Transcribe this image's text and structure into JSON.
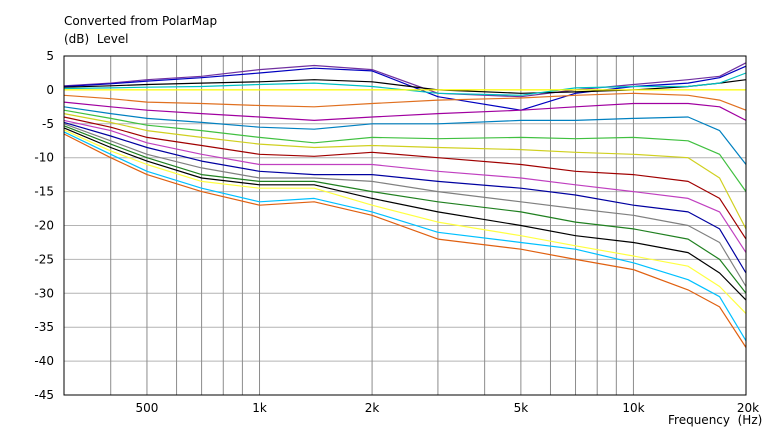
{
  "chart_data": {
    "type": "line",
    "title": "Converted from PolarMap",
    "ylabel": "(dB)  Level",
    "xlabel": "Frequency  (Hz)",
    "x_scale": "log",
    "xlim": [
      300,
      20000
    ],
    "ylim": [
      -45,
      5
    ],
    "grid": true,
    "x_ticks": [
      {
        "value": 400,
        "label": ""
      },
      {
        "value": 500,
        "label": "500"
      },
      {
        "value": 600,
        "label": ""
      },
      {
        "value": 700,
        "label": ""
      },
      {
        "value": 800,
        "label": ""
      },
      {
        "value": 900,
        "label": ""
      },
      {
        "value": 1000,
        "label": "1k"
      },
      {
        "value": 2000,
        "label": "2k"
      },
      {
        "value": 3000,
        "label": ""
      },
      {
        "value": 4000,
        "label": ""
      },
      {
        "value": 5000,
        "label": "5k"
      },
      {
        "value": 6000,
        "label": ""
      },
      {
        "value": 7000,
        "label": ""
      },
      {
        "value": 8000,
        "label": ""
      },
      {
        "value": 9000,
        "label": ""
      },
      {
        "value": 10000,
        "label": "10k"
      },
      {
        "value": 20000,
        "label": "20k"
      }
    ],
    "y_ticks": [
      5,
      0,
      -5,
      -10,
      -15,
      -20,
      -25,
      -30,
      -35,
      -40,
      -45
    ],
    "x": [
      300,
      400,
      500,
      700,
      1000,
      1400,
      2000,
      3000,
      5000,
      7000,
      10000,
      14000,
      17000,
      20000
    ],
    "series": [
      {
        "color": "#7030a0",
        "values": [
          0.6,
          1.0,
          1.5,
          2.0,
          3.0,
          3.6,
          3.0,
          -0.5,
          -1.0,
          0.0,
          0.8,
          1.5,
          2.0,
          4.0
        ]
      },
      {
        "color": "#0000c0",
        "values": [
          0.5,
          0.9,
          1.3,
          1.8,
          2.5,
          3.2,
          2.8,
          -1.0,
          -3.0,
          -0.5,
          0.5,
          1.0,
          1.8,
          3.5
        ]
      },
      {
        "color": "#000000",
        "values": [
          0.4,
          0.6,
          0.8,
          1.0,
          1.2,
          1.5,
          1.2,
          0.0,
          -0.5,
          -0.3,
          0.0,
          0.5,
          1.0,
          1.5
        ]
      },
      {
        "color": "#00c0c0",
        "values": [
          0.2,
          0.3,
          0.4,
          0.5,
          0.8,
          1.0,
          0.5,
          -0.5,
          -0.8,
          0.3,
          0.5,
          0.5,
          1.0,
          2.5
        ]
      },
      {
        "color": "#ffff00",
        "values": [
          0.0,
          0.0,
          0.0,
          0.0,
          0.0,
          0.0,
          0.0,
          0.0,
          0.0,
          0.0,
          0.0,
          0.0,
          0.0,
          0.0
        ]
      },
      {
        "color": "#e07020",
        "values": [
          -0.8,
          -1.3,
          -1.8,
          -2.0,
          -2.3,
          -2.5,
          -2.0,
          -1.5,
          -1.2,
          -0.8,
          -0.5,
          -0.8,
          -1.5,
          -3.0
        ]
      },
      {
        "color": "#a000a0",
        "values": [
          -1.8,
          -2.5,
          -3.0,
          -3.5,
          -4.0,
          -4.5,
          -4.0,
          -3.5,
          -3.0,
          -2.5,
          -2.0,
          -2.0,
          -2.5,
          -4.5
        ]
      },
      {
        "color": "#0080c0",
        "values": [
          -2.5,
          -3.5,
          -4.2,
          -4.8,
          -5.5,
          -5.8,
          -5.0,
          -5.0,
          -4.5,
          -4.5,
          -4.2,
          -4.0,
          -6.0,
          -11.0
        ]
      },
      {
        "color": "#40c040",
        "values": [
          -3.0,
          -4.2,
          -5.2,
          -6.0,
          -7.0,
          -7.8,
          -7.0,
          -7.2,
          -7.0,
          -7.2,
          -7.0,
          -7.5,
          -9.5,
          -15.0
        ]
      },
      {
        "color": "#d0d020",
        "values": [
          -3.5,
          -4.8,
          -6.0,
          -7.0,
          -8.0,
          -8.5,
          -8.2,
          -8.5,
          -8.8,
          -9.2,
          -9.5,
          -10.0,
          -13.0,
          -20.5
        ]
      },
      {
        "color": "#a00000",
        "values": [
          -4.0,
          -5.5,
          -7.0,
          -8.2,
          -9.5,
          -9.8,
          -9.2,
          -10.0,
          -11.0,
          -12.0,
          -12.5,
          -13.5,
          -16.0,
          -22.0
        ]
      },
      {
        "color": "#c040c0",
        "values": [
          -4.5,
          -6.0,
          -7.8,
          -9.5,
          -11.0,
          -11.0,
          -11.0,
          -12.0,
          -13.0,
          -14.0,
          -15.0,
          -16.0,
          -18.0,
          -24.0
        ]
      },
      {
        "color": "#0000a0",
        "values": [
          -4.8,
          -6.8,
          -8.5,
          -10.5,
          -12.0,
          -12.5,
          -12.5,
          -13.5,
          -14.5,
          -15.5,
          -17.0,
          -18.0,
          -20.5,
          -27.0
        ]
      },
      {
        "color": "#808080",
        "values": [
          -5.0,
          -7.5,
          -9.5,
          -11.5,
          -13.0,
          -13.0,
          -13.5,
          -15.0,
          -16.5,
          -17.5,
          -18.5,
          -20.0,
          -22.5,
          -29.0
        ]
      },
      {
        "color": "#208020",
        "values": [
          -5.3,
          -8.0,
          -10.0,
          -12.5,
          -13.5,
          -13.5,
          -15.0,
          -16.5,
          -18.0,
          -19.5,
          -20.5,
          -22.0,
          -25.0,
          -30.0
        ]
      },
      {
        "color": "#000000",
        "values": [
          -5.6,
          -8.5,
          -10.5,
          -13.0,
          -14.0,
          -14.0,
          -16.0,
          -18.0,
          -20.0,
          -21.5,
          -22.5,
          -24.0,
          -27.0,
          -31.0
        ]
      },
      {
        "color": "#ffff40",
        "values": [
          -5.9,
          -9.0,
          -11.0,
          -13.5,
          -14.5,
          -14.5,
          -17.0,
          -19.5,
          -21.5,
          -23.0,
          -24.5,
          -26.0,
          -29.0,
          -33.0
        ]
      },
      {
        "color": "#00c0ff",
        "values": [
          -6.2,
          -9.5,
          -12.0,
          -14.5,
          -16.5,
          -16.0,
          -18.0,
          -21.0,
          -22.5,
          -23.5,
          -25.5,
          -28.0,
          -30.5,
          -37.0
        ]
      },
      {
        "color": "#e06010",
        "values": [
          -6.5,
          -10.0,
          -12.5,
          -15.0,
          -17.0,
          -16.5,
          -18.5,
          -22.0,
          -23.5,
          -25.0,
          -26.5,
          -29.5,
          -32.0,
          -38.0
        ]
      }
    ]
  }
}
